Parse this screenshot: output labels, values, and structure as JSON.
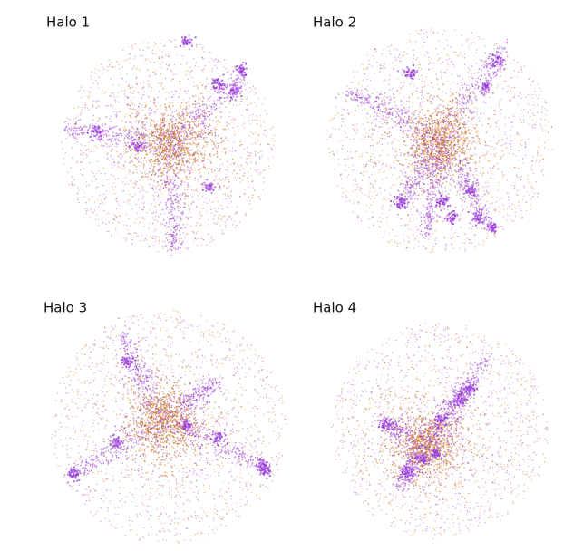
{
  "panels": [
    {
      "title": "Halo 1"
    },
    {
      "title": "Halo 2"
    },
    {
      "title": "Halo 3"
    },
    {
      "title": "Halo 4"
    }
  ]
}
